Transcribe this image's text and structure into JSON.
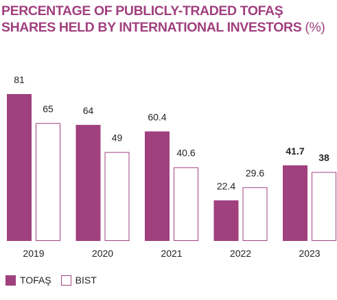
{
  "chart_data": {
    "type": "bar",
    "title_main": "PERCENTAGE OF PUBLICLY-TRADED TOFAŞ SHARES HELD BY INTERNATIONAL INVESTORS",
    "title_unit": "(%)",
    "categories": [
      "2019",
      "2020",
      "2021",
      "2022",
      "2023"
    ],
    "series": [
      {
        "name": "TOFAŞ",
        "values": [
          81,
          64,
          60.4,
          22.4,
          41.7
        ],
        "labels": [
          "81",
          "64",
          "60.4",
          "22.4",
          "41.7"
        ],
        "color": "#a0407e",
        "style": "filled"
      },
      {
        "name": "BIST",
        "values": [
          65,
          49,
          40.6,
          29.6,
          38
        ],
        "labels": [
          "65",
          "49",
          "40.6",
          "29.6",
          "38"
        ],
        "color": "#a0407e",
        "style": "outline"
      }
    ],
    "bold_labels_category": "2023",
    "ylim": [
      0,
      81
    ],
    "grid": false,
    "legend": "bottom-left"
  }
}
